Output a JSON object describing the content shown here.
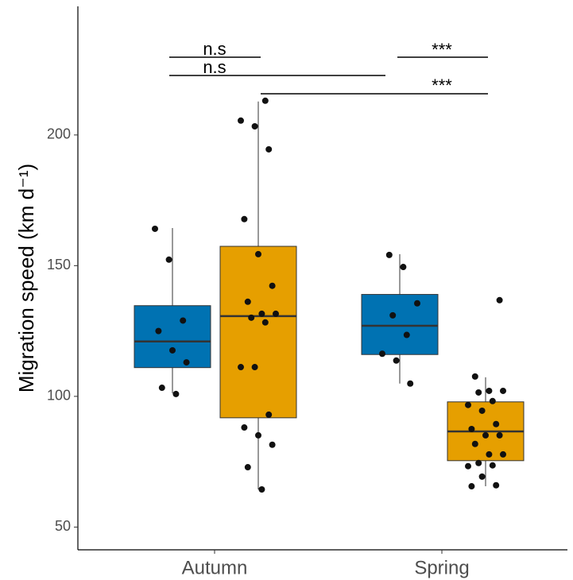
{
  "chart_data": {
    "type": "box",
    "y_label": "Migration speed (km d⁻¹)",
    "categories": [
      "Autumn",
      "Spring"
    ],
    "series": [
      {
        "color": "#0072b2",
        "boxes": [
          {
            "min": 101.2,
            "q1": 111,
            "median": 121,
            "q3": 134.7,
            "max": 164.4
          },
          {
            "min": 104.9,
            "q1": 116,
            "median": 127,
            "q3": 139,
            "max": 154.4
          }
        ],
        "points": [
          [
            164.1,
            152.3,
            129,
            125,
            117.6,
            113,
            103.3,
            100.9
          ],
          [
            154.1,
            149.5,
            135.6,
            131,
            123.5,
            116.3,
            113.7,
            104.9
          ]
        ]
      },
      {
        "color": "#e69f00",
        "boxes": [
          {
            "min": 64.4,
            "q1": 91.8,
            "median": 130.7,
            "q3": 157.4,
            "max": 212.8
          },
          {
            "min": 65.6,
            "q1": 75.4,
            "median": 86.6,
            "q3": 97.9,
            "max": 107.3
          }
        ],
        "points": [
          [
            213.1,
            205.5,
            203.3,
            194.5,
            167.8,
            154.4,
            142.3,
            136.2,
            131.6,
            131.6,
            130.1,
            128.3,
            111.2,
            111.2,
            93,
            88.1,
            85.1,
            81.5,
            72.9,
            64.4
          ],
          [
            136.8,
            107.6,
            102.1,
            102.1,
            101.5,
            98.2,
            96.7,
            94.5,
            89.4,
            87.5,
            85.1,
            85.1,
            81.8,
            77.8,
            77.8,
            74.5,
            73.6,
            73.3,
            69.3,
            66,
            65.6
          ]
        ]
      }
    ],
    "ylim": [
      41.3,
      249.2
    ],
    "yticks": [
      50,
      100,
      150,
      200
    ],
    "annotations": [
      "n.s",
      "n.s",
      "***",
      "***"
    ]
  }
}
